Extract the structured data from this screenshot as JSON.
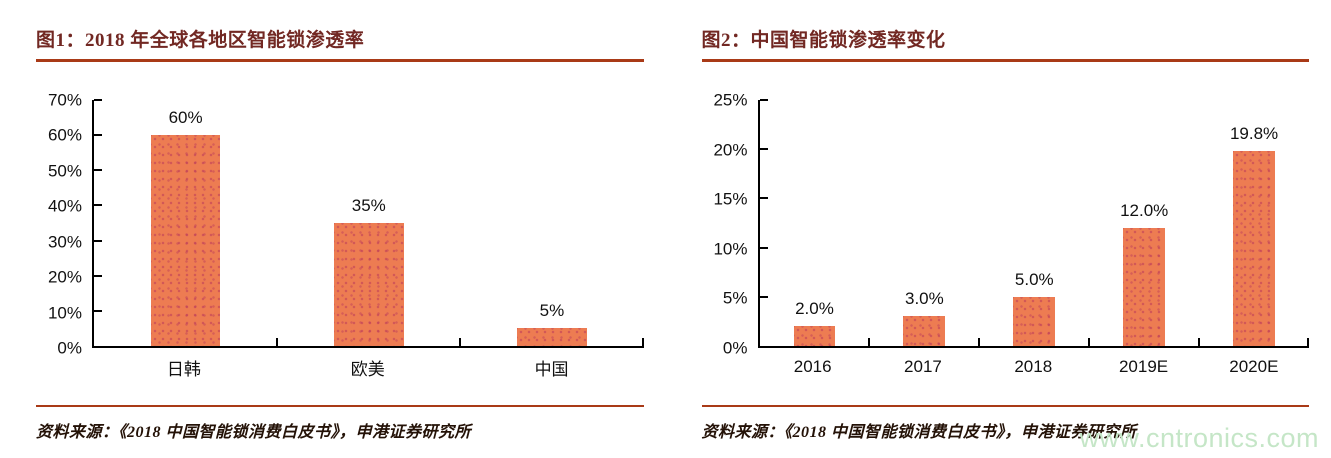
{
  "panels": [
    {
      "title": "图1：2018 年全球各地区智能锁渗透率",
      "source": "资料来源：《2018 中国智能锁消费白皮书》，申港证券研究所"
    },
    {
      "title": "图2：中国智能锁渗透率变化",
      "source": "资料来源：《2018 中国智能锁消费白皮书》，申港证券研究所"
    }
  ],
  "chart_data": [
    {
      "type": "bar",
      "title": "图1：2018 年全球各地区智能锁渗透率",
      "categories": [
        "日韩",
        "欧美",
        "中国"
      ],
      "values": [
        60,
        35,
        5
      ],
      "value_labels": [
        "60%",
        "35%",
        "5%"
      ],
      "ylabel": "",
      "xlabel": "",
      "ylim": [
        0,
        70
      ],
      "ytick_values": [
        0,
        10,
        20,
        30,
        40,
        50,
        60,
        70
      ],
      "ytick_labels": [
        "0%",
        "10%",
        "20%",
        "30%",
        "40%",
        "50%",
        "60%",
        "70%"
      ],
      "grid": false,
      "legend": "none",
      "bar_color": "#ED7C52"
    },
    {
      "type": "bar",
      "title": "图2：中国智能锁渗透率变化",
      "categories": [
        "2016",
        "2017",
        "2018",
        "2019E",
        "2020E"
      ],
      "values": [
        2.0,
        3.0,
        5.0,
        12.0,
        19.8
      ],
      "value_labels": [
        "2.0%",
        "3.0%",
        "5.0%",
        "12.0%",
        "19.8%"
      ],
      "ylabel": "",
      "xlabel": "",
      "ylim": [
        0,
        25
      ],
      "ytick_values": [
        0,
        5,
        10,
        15,
        20,
        25
      ],
      "ytick_labels": [
        "0%",
        "5%",
        "10%",
        "15%",
        "20%",
        "25%"
      ],
      "grid": false,
      "legend": "none",
      "bar_color": "#ED7C52"
    }
  ],
  "watermark": "www.cntronics.com",
  "colors": {
    "bar_fill": "#ED7C52",
    "bar_dots": "#BA395B",
    "title_text": "#722823",
    "rule_line": "#A93A17",
    "axis_line": "#000000",
    "watermark_text": "#C5E6C7"
  }
}
